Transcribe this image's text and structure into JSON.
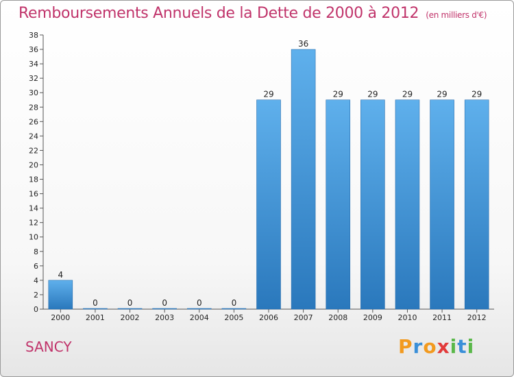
{
  "header": {
    "title": "Remboursements Annuels de la Dette de 2000 à 2012",
    "unit": "(en milliers d'€)"
  },
  "footer": {
    "commune": "SANCY",
    "logo": "Proxiti"
  },
  "colors": {
    "title": "#c0336a",
    "bar_top": "#5fb0ec",
    "bar_bottom": "#2a78bc",
    "logo_letters": [
      "#f29a1f",
      "#3a8fd8",
      "#f29a1f",
      "#e23a3a",
      "#5ab84a",
      "#3a8fd8",
      "#5ab84a"
    ]
  },
  "chart_data": {
    "type": "bar",
    "title": "Remboursements Annuels de la Dette de 2000 à 2012",
    "subtitle": "(en milliers d'€)",
    "categories": [
      "2000",
      "2001",
      "2002",
      "2003",
      "2004",
      "2005",
      "2006",
      "2007",
      "2008",
      "2009",
      "2010",
      "2011",
      "2012"
    ],
    "values": [
      4,
      0,
      0,
      0,
      0,
      0,
      29,
      36,
      29,
      29,
      29,
      29,
      29
    ],
    "xlabel": "",
    "ylabel": "",
    "ylim": [
      0,
      38
    ],
    "yticks": [
      0,
      2,
      4,
      6,
      8,
      10,
      12,
      14,
      16,
      18,
      20,
      22,
      24,
      26,
      28,
      30,
      32,
      34,
      36,
      38
    ],
    "grid": false,
    "legend": "none"
  }
}
